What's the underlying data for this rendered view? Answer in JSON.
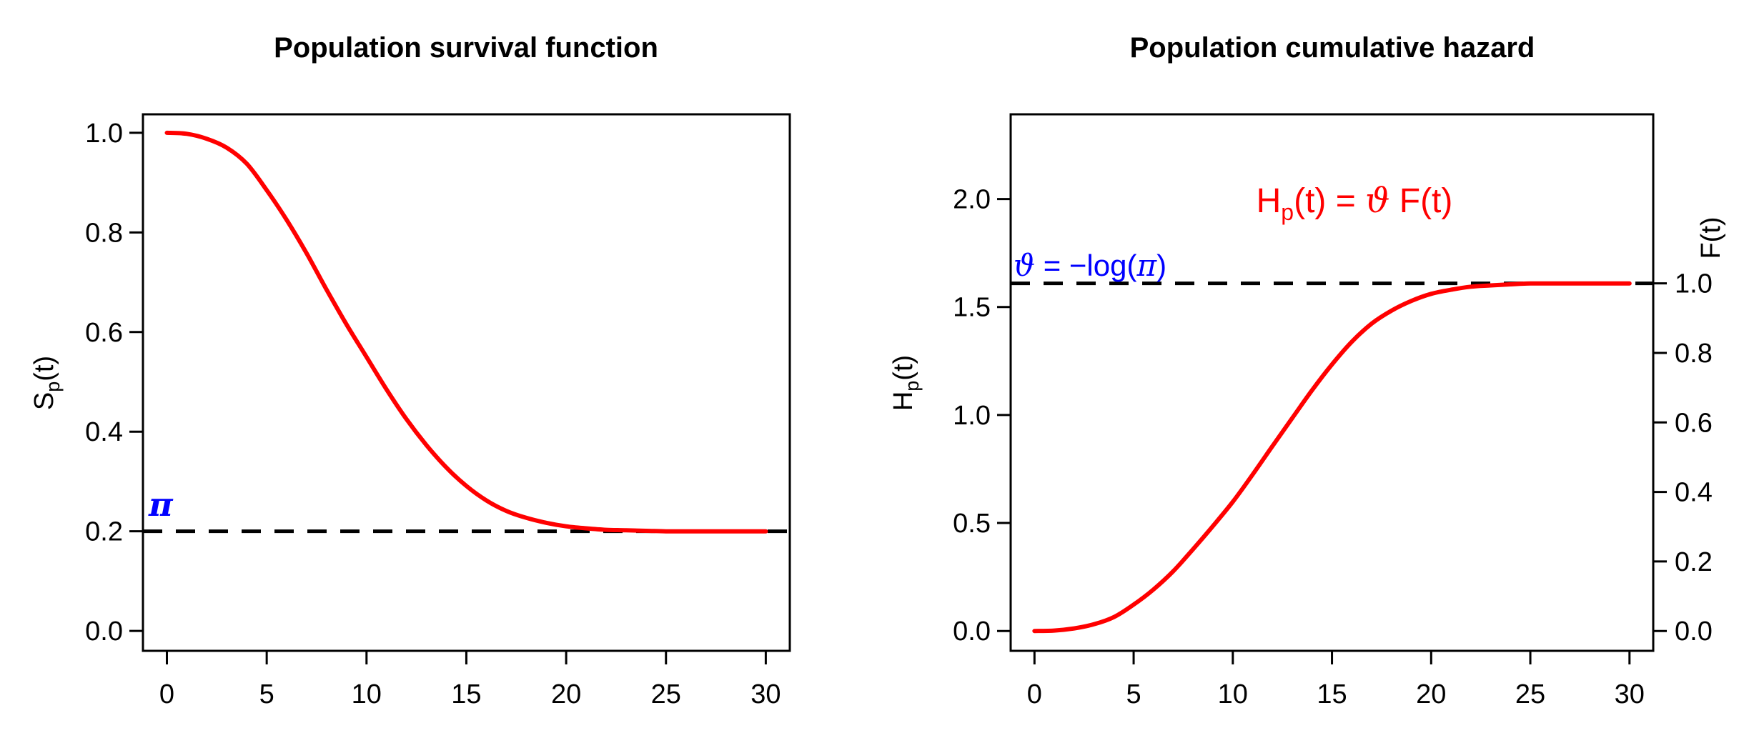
{
  "figure": {
    "background": "#ffffff",
    "curve_color": "#ff0000",
    "annotation_blue": "#0000ff",
    "axis_color": "#000000",
    "dashed_line_style": "dashed"
  },
  "chart_data": [
    {
      "type": "line",
      "title": "Population survival function",
      "ylabel_parts": {
        "main": "S",
        "sub": "p",
        "rest": "(t)"
      },
      "xlabel": "",
      "xlim": [
        0,
        30
      ],
      "ylim": [
        0.0,
        1.0
      ],
      "xticks": [
        0,
        5,
        10,
        15,
        20,
        25,
        30
      ],
      "yticks": [
        0.0,
        0.2,
        0.4,
        0.6,
        0.8,
        1.0
      ],
      "grid": false,
      "legend": "none",
      "hline": {
        "value": 0.2,
        "style": "dashed",
        "line_color": "#000000",
        "label": "π",
        "label_color": "#0000ff"
      },
      "series": [
        {
          "name": "Sp(t)",
          "color": "#ff0000",
          "x": [
            0,
            1,
            2,
            3,
            4,
            5,
            6,
            7,
            8,
            9,
            10,
            11,
            12,
            13,
            14,
            15,
            16,
            17,
            18,
            19,
            20,
            21,
            22,
            23,
            24,
            25,
            26,
            27,
            28,
            29,
            30
          ],
          "y": [
            1.0,
            0.998,
            0.988,
            0.97,
            0.938,
            0.885,
            0.825,
            0.758,
            0.685,
            0.615,
            0.55,
            0.485,
            0.425,
            0.373,
            0.328,
            0.291,
            0.262,
            0.241,
            0.227,
            0.217,
            0.21,
            0.206,
            0.203,
            0.202,
            0.201,
            0.2,
            0.2,
            0.2,
            0.2,
            0.2,
            0.2
          ]
        }
      ]
    },
    {
      "type": "line",
      "title": "Population cumulative hazard",
      "ylabel_parts": {
        "main": "H",
        "sub": "p",
        "rest": "(t)"
      },
      "ylabel_right": "F(t)",
      "xlabel": "",
      "xlim": [
        0,
        30
      ],
      "ylim": [
        0.0,
        2.3
      ],
      "xticks": [
        0,
        5,
        10,
        15,
        20,
        25,
        30
      ],
      "yticks_left": [
        0.0,
        0.5,
        1.0,
        1.5,
        2.0
      ],
      "yticks_right": [
        0.0,
        0.2,
        0.4,
        0.6,
        0.8,
        1.0
      ],
      "right_axis_scale": 1.6094,
      "grid": false,
      "legend": "none",
      "hline": {
        "value": 1.6094,
        "style": "dashed",
        "line_color": "#000000",
        "label_parts": {
          "theta": "ϑ",
          "mid": " = −log(",
          "pi": "π",
          "close": ")"
        },
        "label_color": "#0000ff"
      },
      "annotation": {
        "color": "#ff0000",
        "parts": {
          "main": "H",
          "sub": "p",
          "mid": "(t) = ",
          "theta": "ϑ",
          "rest": " F(t)"
        }
      },
      "series": [
        {
          "name": "Hp(t)",
          "color": "#ff0000",
          "x": [
            0,
            1,
            2,
            3,
            4,
            5,
            6,
            7,
            8,
            9,
            10,
            11,
            12,
            13,
            14,
            15,
            16,
            17,
            18,
            19,
            20,
            21,
            22,
            23,
            24,
            25,
            26,
            27,
            28,
            29,
            30
          ],
          "y": [
            0.0,
            0.002,
            0.012,
            0.031,
            0.064,
            0.122,
            0.192,
            0.277,
            0.379,
            0.486,
            0.598,
            0.724,
            0.856,
            0.986,
            1.115,
            1.234,
            1.339,
            1.423,
            1.483,
            1.528,
            1.561,
            1.58,
            1.594,
            1.6,
            1.605,
            1.609,
            1.609,
            1.609,
            1.609,
            1.609,
            1.609
          ]
        }
      ]
    }
  ]
}
